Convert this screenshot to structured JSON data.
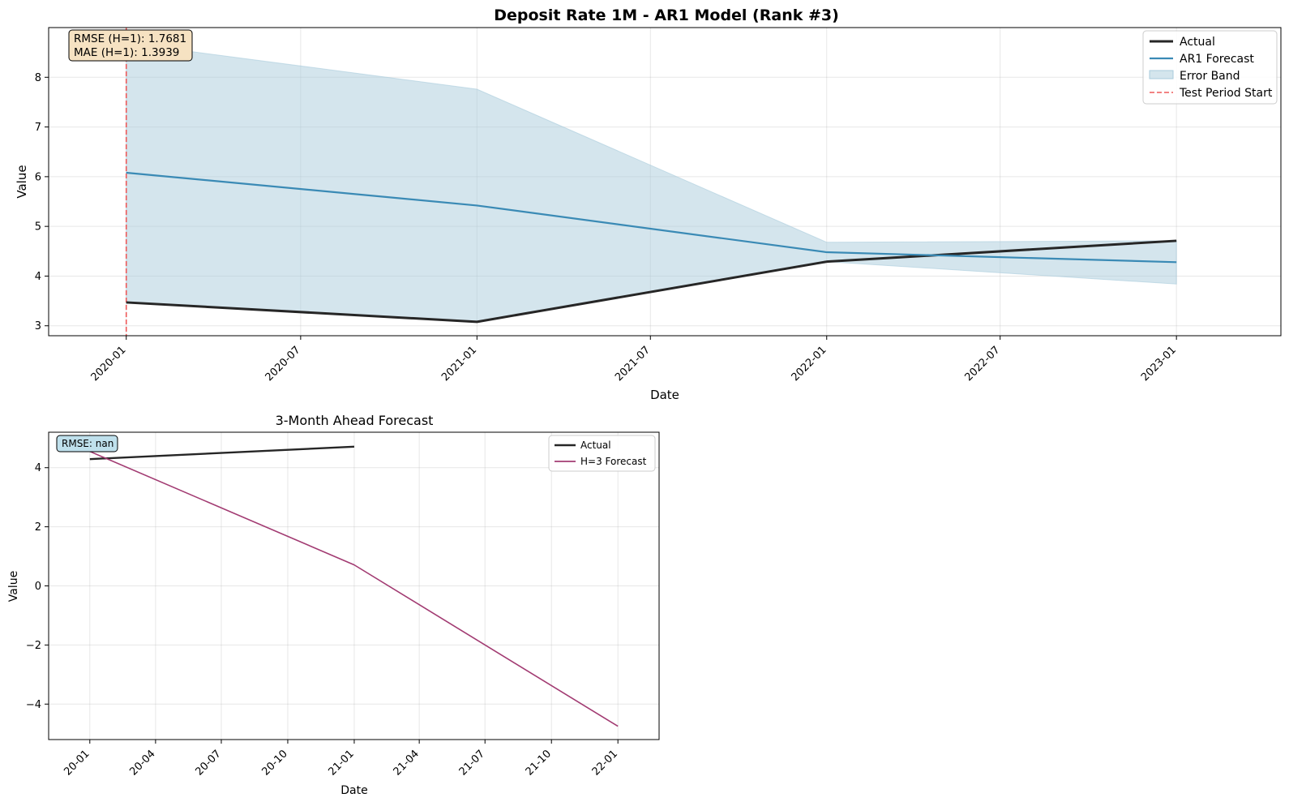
{
  "chart_data": [
    {
      "type": "line",
      "title": "Deposit Rate 1M - AR1 Model (Rank #3)",
      "xlabel": "Date",
      "ylabel": "Value",
      "x_ticks": [
        "2020-01",
        "2020-07",
        "2021-01",
        "2021-07",
        "2022-01",
        "2022-07",
        "2023-01"
      ],
      "y_ticks": [
        "3",
        "4",
        "5",
        "6",
        "7",
        "8"
      ],
      "ylim": [
        2.8,
        9.0
      ],
      "xlim": [
        "2019-10-12",
        "2023-04-20"
      ],
      "grid": true,
      "legend_position": "top-right",
      "x": [
        "2020-01-01",
        "2021-01-01",
        "2022-01-01",
        "2023-01-01"
      ],
      "series": [
        {
          "name": "Actual",
          "values": [
            3.47,
            3.08,
            4.29,
            4.71
          ],
          "color": "#262626"
        },
        {
          "name": "AR1 Forecast",
          "values": [
            6.08,
            5.42,
            4.48,
            4.28
          ],
          "color": "#3a8ab5"
        }
      ],
      "band": {
        "name": "Error Band",
        "lower": [
          3.47,
          3.08,
          4.29,
          3.84
        ],
        "upper": [
          8.69,
          7.76,
          4.68,
          4.71
        ],
        "color": "#a9cbdc"
      },
      "vline": {
        "name": "Test Period Start",
        "x": "2020-01-01",
        "color": "#ee5a5a"
      },
      "annotation": {
        "lines": [
          "RMSE (H=1): 1.7681",
          "MAE (H=1): 1.3939"
        ],
        "bg": "#f6e2c2"
      }
    },
    {
      "type": "line",
      "title": "3-Month Ahead Forecast",
      "xlabel": "Date",
      "ylabel": "Value",
      "x_ticks": [
        "20-01",
        "20-04",
        "20-07",
        "20-10",
        "21-01",
        "21-04",
        "21-07",
        "21-10",
        "22-01"
      ],
      "y_ticks": [
        "4",
        "2",
        "0",
        "−2",
        "−4"
      ],
      "ylim": [
        -5.2,
        5.2
      ],
      "xlim": [
        "2019-11-05",
        "2022-02-27"
      ],
      "grid": true,
      "legend_position": "top-right",
      "series": [
        {
          "name": "Actual",
          "x": [
            "2020-01-01",
            "2021-01-01"
          ],
          "values": [
            4.29,
            4.71
          ],
          "color": "#262626"
        },
        {
          "name": "H=3 Forecast",
          "x": [
            "2020-01-01",
            "2021-01-01",
            "2022-01-01"
          ],
          "values": [
            4.55,
            0.71,
            -4.75
          ],
          "color": "#a23b72"
        }
      ],
      "annotation": {
        "lines": [
          "RMSE: nan"
        ],
        "bg": "#bfe0ec"
      }
    }
  ]
}
